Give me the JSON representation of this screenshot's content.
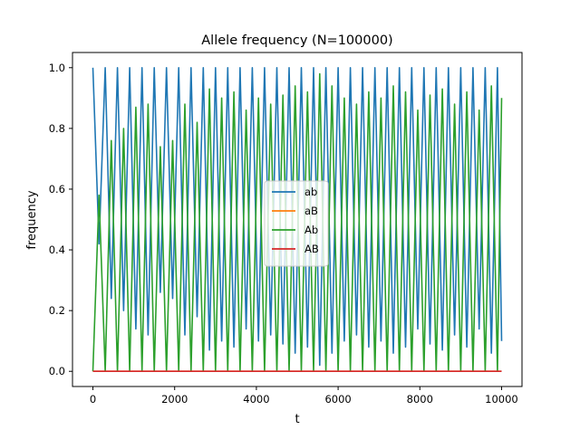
{
  "chart_data": {
    "type": "line",
    "title": "Allele frequency (N=100000)",
    "xlabel": "t",
    "ylabel": "frequency",
    "xlim": [
      -500,
      10500
    ],
    "ylim": [
      -0.05,
      1.05
    ],
    "x_ticks": [
      0,
      2000,
      4000,
      6000,
      8000,
      10000
    ],
    "x_tick_labels": [
      "0",
      "2000",
      "4000",
      "6000",
      "8000",
      "10000"
    ],
    "y_ticks": [
      0.0,
      0.2,
      0.4,
      0.6,
      0.8,
      1.0
    ],
    "y_tick_labels": [
      "0.0",
      "0.2",
      "0.4",
      "0.6",
      "0.8",
      "1.0"
    ],
    "grid": false,
    "legend_position": "center",
    "series": [
      {
        "name": "ab",
        "color": "#1f77b4",
        "x": [
          0,
          150,
          300,
          450,
          600,
          750,
          900,
          1050,
          1200,
          1350,
          1500,
          1650,
          1800,
          1950,
          2100,
          2250,
          2400,
          2550,
          2700,
          2850,
          3000,
          3150,
          3300,
          3450,
          3600,
          3750,
          3900,
          4050,
          4200,
          4350,
          4500,
          4650,
          4800,
          4950,
          5100,
          5250,
          5400,
          5550,
          5700,
          5850,
          6000,
          6150,
          6300,
          6450,
          6600,
          6750,
          6900,
          7050,
          7200,
          7350,
          7500,
          7650,
          7800,
          7950,
          8100,
          8250,
          8400,
          8550,
          8700,
          8850,
          9000,
          9150,
          9300,
          9450,
          9600,
          9750,
          9900,
          10000
        ],
        "y": [
          1.0,
          0.42,
          1.0,
          0.24,
          1.0,
          0.2,
          1.0,
          0.14,
          1.0,
          0.12,
          1.0,
          0.26,
          1.0,
          0.24,
          1.0,
          0.12,
          1.0,
          0.18,
          1.0,
          0.07,
          1.0,
          0.1,
          1.0,
          0.08,
          1.0,
          0.14,
          1.0,
          0.1,
          1.0,
          0.12,
          1.0,
          0.09,
          1.0,
          0.06,
          1.0,
          0.08,
          1.0,
          0.02,
          1.0,
          0.06,
          1.0,
          0.1,
          1.0,
          0.12,
          1.0,
          0.08,
          1.0,
          0.1,
          1.0,
          0.06,
          1.0,
          0.08,
          1.0,
          0.14,
          1.0,
          0.09,
          1.0,
          0.07,
          1.0,
          0.12,
          1.0,
          0.08,
          1.0,
          0.14,
          1.0,
          0.06,
          1.0,
          0.1
        ]
      },
      {
        "name": "aB",
        "color": "#ff7f0e",
        "x": [
          0,
          10000
        ],
        "y": [
          0.0,
          0.0
        ]
      },
      {
        "name": "Ab",
        "color": "#2ca02c",
        "x": [
          0,
          150,
          300,
          450,
          600,
          750,
          900,
          1050,
          1200,
          1350,
          1500,
          1650,
          1800,
          1950,
          2100,
          2250,
          2400,
          2550,
          2700,
          2850,
          3000,
          3150,
          3300,
          3450,
          3600,
          3750,
          3900,
          4050,
          4200,
          4350,
          4500,
          4650,
          4800,
          4950,
          5100,
          5250,
          5400,
          5550,
          5700,
          5850,
          6000,
          6150,
          6300,
          6450,
          6600,
          6750,
          6900,
          7050,
          7200,
          7350,
          7500,
          7650,
          7800,
          7950,
          8100,
          8250,
          8400,
          8550,
          8700,
          8850,
          9000,
          9150,
          9300,
          9450,
          9600,
          9750,
          9900,
          10000
        ],
        "y": [
          0.0,
          0.58,
          0.0,
          0.76,
          0.0,
          0.8,
          0.0,
          0.87,
          0.0,
          0.88,
          0.0,
          0.74,
          0.0,
          0.76,
          0.0,
          0.88,
          0.0,
          0.82,
          0.0,
          0.93,
          0.0,
          0.9,
          0.0,
          0.92,
          0.0,
          0.86,
          0.0,
          0.9,
          0.0,
          0.88,
          0.0,
          0.91,
          0.0,
          0.94,
          0.0,
          0.92,
          0.0,
          0.98,
          0.0,
          0.94,
          0.0,
          0.9,
          0.0,
          0.88,
          0.0,
          0.92,
          0.0,
          0.9,
          0.0,
          0.94,
          0.0,
          0.92,
          0.0,
          0.86,
          0.0,
          0.91,
          0.0,
          0.93,
          0.0,
          0.88,
          0.0,
          0.92,
          0.0,
          0.86,
          0.0,
          0.94,
          0.0,
          0.9
        ]
      },
      {
        "name": "AB",
        "color": "#d62728",
        "x": [
          0,
          10000
        ],
        "y": [
          0.0,
          0.0
        ]
      }
    ]
  }
}
